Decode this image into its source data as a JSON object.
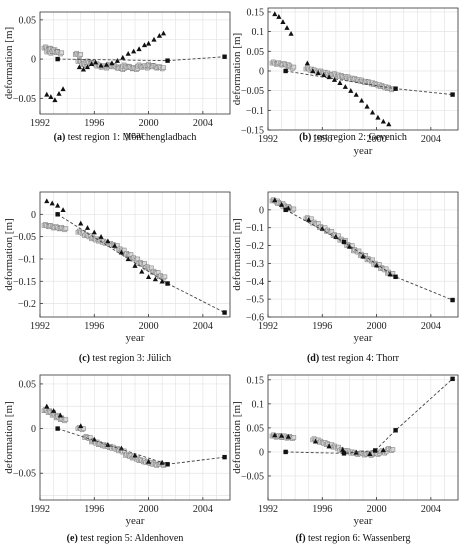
{
  "panels": [
    {
      "caption_letter": "(a)",
      "caption_text": " test region 1: Mönchengladbach",
      "ylabel": "deformation [m]",
      "xlabel": "year",
      "xlim": [
        1992,
        2006
      ],
      "ylim": [
        -0.07,
        0.06
      ],
      "yticks": [
        -0.05,
        0,
        0.05
      ],
      "ytick_labels": [
        "−0.05",
        "0",
        "0.05"
      ],
      "xticks": [
        1992,
        1996,
        2000,
        2004
      ],
      "xtick_labels": [
        "1992",
        "1996",
        "2000",
        "2004"
      ],
      "gridlines_y": [
        -0.05,
        -0.025,
        0,
        0.025,
        0.05
      ],
      "leveling": [
        [
          1993.3,
          0
        ],
        [
          2001.4,
          -0.002
        ],
        [
          2005.6,
          0.003
        ]
      ],
      "ps_gray": [
        [
          1992.5,
          0.014
        ],
        [
          1992.7,
          0.009
        ],
        [
          1992.9,
          0.012
        ],
        [
          1993.1,
          0.01
        ],
        [
          1993.4,
          0.008
        ],
        [
          1994.8,
          0.006
        ],
        [
          1995.0,
          -0.003
        ],
        [
          1995.3,
          -0.007
        ],
        [
          1995.6,
          -0.004
        ],
        [
          1996.0,
          -0.006
        ],
        [
          1996.4,
          -0.009
        ],
        [
          1996.8,
          -0.01
        ],
        [
          1997.2,
          -0.008
        ],
        [
          1997.6,
          -0.01
        ],
        [
          1998.0,
          -0.012
        ],
        [
          1998.3,
          -0.009
        ],
        [
          1998.7,
          -0.011
        ],
        [
          1999.0,
          -0.012
        ],
        [
          1999.4,
          -0.009
        ],
        [
          1999.8,
          -0.01
        ],
        [
          2000.1,
          -0.008
        ],
        [
          2000.5,
          -0.01
        ],
        [
          2000.9,
          -0.011
        ]
      ],
      "ps_black": [
        [
          1992.5,
          -0.045
        ],
        [
          1992.8,
          -0.048
        ],
        [
          1993.1,
          -0.052
        ],
        [
          1993.4,
          -0.044
        ],
        [
          1993.7,
          -0.038
        ],
        [
          1994.9,
          -0.01
        ],
        [
          1995.2,
          -0.013
        ],
        [
          1995.5,
          -0.01
        ],
        [
          1995.8,
          -0.006
        ],
        [
          1996.1,
          -0.004
        ],
        [
          1996.5,
          -0.008
        ],
        [
          1996.9,
          -0.007
        ],
        [
          1997.3,
          -0.005
        ],
        [
          1997.7,
          -0.002
        ],
        [
          1998.1,
          0.002
        ],
        [
          1998.5,
          0.007
        ],
        [
          1998.9,
          0.01
        ],
        [
          1999.3,
          0.013
        ],
        [
          1999.7,
          0.018
        ],
        [
          2000.0,
          0.02
        ],
        [
          2000.4,
          0.025
        ],
        [
          2000.8,
          0.03
        ],
        [
          2001.1,
          0.033
        ]
      ]
    },
    {
      "caption_letter": "(b)",
      "caption_text": " test region 2: Gevenich",
      "ylabel": "deformation [m]",
      "xlabel": "year",
      "xlim": [
        1992,
        2006
      ],
      "ylim": [
        -0.15,
        0.16
      ],
      "yticks": [
        -0.15,
        -0.1,
        -0.05,
        0,
        0.05,
        0.1,
        0.15
      ],
      "ytick_labels": [
        "−0.15",
        "−0.1",
        "−0.05",
        "0",
        "0.05",
        "0.1",
        "0.15"
      ],
      "xticks": [
        1992,
        1996,
        2000,
        2004
      ],
      "xtick_labels": [
        "1992",
        "1996",
        "2000",
        "2004"
      ],
      "gridlines_y": [
        -0.15,
        -0.1,
        -0.05,
        0,
        0.05,
        0.1,
        0.15
      ],
      "leveling": [
        [
          1993.3,
          0
        ],
        [
          2001.4,
          -0.045
        ],
        [
          2005.6,
          -0.06
        ]
      ],
      "ps_gray": [
        [
          1992.5,
          0.02
        ],
        [
          1992.9,
          0.018
        ],
        [
          1993.3,
          0.016
        ],
        [
          1993.7,
          0.01
        ],
        [
          1995.0,
          0.005
        ],
        [
          1995.5,
          0.0
        ],
        [
          1996.0,
          -0.003
        ],
        [
          1996.5,
          -0.008
        ],
        [
          1997.0,
          -0.01
        ],
        [
          1997.5,
          -0.014
        ],
        [
          1998.0,
          -0.018
        ],
        [
          1998.5,
          -0.022
        ],
        [
          1999.0,
          -0.026
        ],
        [
          1999.5,
          -0.03
        ],
        [
          2000.0,
          -0.035
        ],
        [
          2000.5,
          -0.04
        ],
        [
          2001.0,
          -0.045
        ]
      ],
      "ps_black": [
        [
          1992.5,
          0.145
        ],
        [
          1992.8,
          0.138
        ],
        [
          1993.1,
          0.125
        ],
        [
          1993.4,
          0.11
        ],
        [
          1993.7,
          0.095
        ],
        [
          1994.9,
          0.02
        ],
        [
          1995.3,
          0.0
        ],
        [
          1995.7,
          -0.005
        ],
        [
          1996.1,
          -0.01
        ],
        [
          1996.5,
          -0.015
        ],
        [
          1996.9,
          -0.022
        ],
        [
          1997.3,
          -0.03
        ],
        [
          1997.7,
          -0.04
        ],
        [
          1998.1,
          -0.05
        ],
        [
          1998.5,
          -0.06
        ],
        [
          1998.9,
          -0.075
        ],
        [
          1999.3,
          -0.09
        ],
        [
          1999.7,
          -0.105
        ],
        [
          2000.1,
          -0.118
        ],
        [
          2000.5,
          -0.128
        ],
        [
          2000.9,
          -0.135
        ]
      ]
    },
    {
      "caption_letter": "(c)",
      "caption_text": " test region 3: Jülich",
      "ylabel": "deformation [m]",
      "xlabel": "year",
      "xlim": [
        1992,
        2006
      ],
      "ylim": [
        -0.23,
        0.05
      ],
      "yticks": [
        -0.2,
        -0.15,
        -0.1,
        -0.05,
        0
      ],
      "ytick_labels": [
        "−0.2",
        "−0.15",
        "−0.1",
        "−0.05",
        "0"
      ],
      "xticks": [
        1992,
        1996,
        2000,
        2004
      ],
      "xtick_labels": [
        "1992",
        "1996",
        "2000",
        "2004"
      ],
      "gridlines_y": [
        -0.2,
        -0.15,
        -0.1,
        -0.05,
        0
      ],
      "leveling": [
        [
          1993.3,
          0
        ],
        [
          2001.4,
          -0.155
        ],
        [
          2005.6,
          -0.22
        ]
      ],
      "ps_gray": [
        [
          1992.5,
          -0.025
        ],
        [
          1992.9,
          -0.028
        ],
        [
          1993.3,
          -0.03
        ],
        [
          1993.7,
          -0.032
        ],
        [
          1995.0,
          -0.04
        ],
        [
          1995.5,
          -0.048
        ],
        [
          1996.0,
          -0.055
        ],
        [
          1996.5,
          -0.06
        ],
        [
          1997.0,
          -0.065
        ],
        [
          1997.5,
          -0.07
        ],
        [
          1998.0,
          -0.08
        ],
        [
          1998.5,
          -0.09
        ],
        [
          1999.0,
          -0.1
        ],
        [
          1999.5,
          -0.11
        ],
        [
          2000.0,
          -0.12
        ],
        [
          2000.5,
          -0.13
        ],
        [
          2001.0,
          -0.14
        ]
      ],
      "ps_black": [
        [
          1992.5,
          0.03
        ],
        [
          1992.9,
          0.025
        ],
        [
          1993.3,
          0.02
        ],
        [
          1993.7,
          0.01
        ],
        [
          1995.0,
          -0.02
        ],
        [
          1995.5,
          -0.03
        ],
        [
          1996.0,
          -0.04
        ],
        [
          1996.5,
          -0.05
        ],
        [
          1997.0,
          -0.06
        ],
        [
          1997.5,
          -0.07
        ],
        [
          1998.0,
          -0.085
        ],
        [
          1998.5,
          -0.1
        ],
        [
          1999.0,
          -0.115
        ],
        [
          1999.5,
          -0.128
        ],
        [
          2000.0,
          -0.14
        ],
        [
          2000.5,
          -0.145
        ],
        [
          2001.0,
          -0.15
        ]
      ]
    },
    {
      "caption_letter": "(d)",
      "caption_text": " test region 4: Thorr",
      "ylabel": "deformation [m]",
      "xlabel": "year",
      "xlim": [
        1992,
        2006
      ],
      "ylim": [
        -0.6,
        0.1
      ],
      "yticks": [
        -0.6,
        -0.5,
        -0.4,
        -0.3,
        -0.2,
        -0.1,
        0
      ],
      "ytick_labels": [
        "−0.6",
        "−0.5",
        "−0.4",
        "−0.3",
        "−0.2",
        "−0.1",
        "0"
      ],
      "xticks": [
        1992,
        1996,
        2000,
        2004
      ],
      "xtick_labels": [
        "1992",
        "1996",
        "2000",
        "2004"
      ],
      "gridlines_y": [
        -0.6,
        -0.5,
        -0.4,
        -0.3,
        -0.2,
        -0.1,
        0
      ],
      "leveling": [
        [
          1993.3,
          0
        ],
        [
          1997.6,
          -0.18
        ],
        [
          2001.4,
          -0.375
        ],
        [
          2005.6,
          -0.505
        ]
      ],
      "ps_gray": [
        [
          1992.5,
          0.05
        ],
        [
          1992.9,
          0.035
        ],
        [
          1993.3,
          0.02
        ],
        [
          1993.7,
          0.005
        ],
        [
          1995.0,
          -0.05
        ],
        [
          1995.5,
          -0.075
        ],
        [
          1996.0,
          -0.1
        ],
        [
          1996.5,
          -0.12
        ],
        [
          1997.0,
          -0.145
        ],
        [
          1997.5,
          -0.17
        ],
        [
          1998.0,
          -0.2
        ],
        [
          1998.5,
          -0.23
        ],
        [
          1999.0,
          -0.255
        ],
        [
          1999.5,
          -0.28
        ],
        [
          2000.0,
          -0.305
        ],
        [
          2000.5,
          -0.33
        ],
        [
          2001.0,
          -0.355
        ]
      ],
      "ps_black": [
        [
          1992.5,
          0.055
        ],
        [
          1993.0,
          0.03
        ],
        [
          1993.5,
          0.01
        ],
        [
          1995.0,
          -0.055
        ],
        [
          1996.0,
          -0.105
        ],
        [
          1997.0,
          -0.15
        ],
        [
          1998.0,
          -0.205
        ],
        [
          1999.0,
          -0.26
        ],
        [
          2000.0,
          -0.31
        ],
        [
          2001.0,
          -0.36
        ]
      ]
    },
    {
      "caption_letter": "(e)",
      "caption_text": " test region 5: Aldenhoven",
      "ylabel": "deformation [m]",
      "xlabel": "year",
      "xlim": [
        1992,
        2006
      ],
      "ylim": [
        -0.08,
        0.06
      ],
      "yticks": [
        -0.05,
        0,
        0.05
      ],
      "ytick_labels": [
        "−0.05",
        "0",
        "0.05"
      ],
      "xticks": [
        1992,
        1996,
        2000,
        2004
      ],
      "xtick_labels": [
        "1992",
        "1996",
        "2000",
        "2004"
      ],
      "gridlines_y": [
        -0.075,
        -0.05,
        -0.025,
        0,
        0.025,
        0.05
      ],
      "leveling": [
        [
          1993.3,
          0
        ],
        [
          2001.4,
          -0.04
        ],
        [
          2005.6,
          -0.032
        ]
      ],
      "ps_gray": [
        [
          1992.5,
          0.02
        ],
        [
          1992.8,
          0.018
        ],
        [
          1993.1,
          0.015
        ],
        [
          1993.4,
          0.012
        ],
        [
          1993.7,
          0.01
        ],
        [
          1995.0,
          0.0
        ],
        [
          1995.5,
          -0.01
        ],
        [
          1996.0,
          -0.015
        ],
        [
          1996.5,
          -0.018
        ],
        [
          1997.0,
          -0.02
        ],
        [
          1997.5,
          -0.022
        ],
        [
          1998.0,
          -0.025
        ],
        [
          1998.5,
          -0.03
        ],
        [
          1999.0,
          -0.033
        ],
        [
          1999.5,
          -0.036
        ],
        [
          2000.0,
          -0.038
        ],
        [
          2000.5,
          -0.04
        ],
        [
          2001.0,
          -0.04
        ]
      ],
      "ps_black": [
        [
          1992.5,
          0.025
        ],
        [
          1993.0,
          0.02
        ],
        [
          1993.5,
          0.015
        ],
        [
          1995.0,
          0.003
        ],
        [
          1996.0,
          -0.012
        ],
        [
          1997.0,
          -0.018
        ],
        [
          1998.0,
          -0.022
        ],
        [
          1999.0,
          -0.03
        ],
        [
          2000.0,
          -0.037
        ],
        [
          2001.0,
          -0.038
        ]
      ]
    },
    {
      "caption_letter": "(f)",
      "caption_text": " test region 6: Wassenberg",
      "ylabel": "deformation [m]",
      "xlabel": "year",
      "xlim": [
        1992,
        2006
      ],
      "ylim": [
        -0.1,
        0.16
      ],
      "yticks": [
        -0.05,
        0,
        0.05,
        0.1,
        0.15
      ],
      "ytick_labels": [
        "−0.05",
        "0",
        "0.05",
        "0.1",
        "0.15"
      ],
      "xticks": [
        1992,
        1996,
        2000,
        2004
      ],
      "xtick_labels": [
        "1992",
        "1996",
        "2000",
        "2004"
      ],
      "gridlines_y": [
        -0.1,
        -0.05,
        0,
        0.05,
        0.1,
        0.15
      ],
      "leveling": [
        [
          1993.3,
          0
        ],
        [
          1997.6,
          -0.003
        ],
        [
          1999.9,
          0.003
        ],
        [
          2001.4,
          0.045
        ],
        [
          2005.6,
          0.152
        ]
      ],
      "ps_gray": [
        [
          1992.5,
          0.033
        ],
        [
          1992.9,
          0.032
        ],
        [
          1993.3,
          0.031
        ],
        [
          1993.7,
          0.03
        ],
        [
          1995.5,
          0.025
        ],
        [
          1996.0,
          0.02
        ],
        [
          1996.5,
          0.015
        ],
        [
          1997.0,
          0.01
        ],
        [
          1997.5,
          0.003
        ],
        [
          1998.0,
          0.0
        ],
        [
          1998.5,
          -0.003
        ],
        [
          1999.0,
          -0.004
        ],
        [
          1999.5,
          -0.005
        ],
        [
          2000.0,
          -0.003
        ],
        [
          2000.5,
          0.0
        ],
        [
          2001.0,
          0.005
        ]
      ],
      "ps_black": [
        [
          1992.5,
          0.035
        ],
        [
          1993.0,
          0.034
        ],
        [
          1993.5,
          0.032
        ],
        [
          1995.5,
          0.022
        ],
        [
          1996.5,
          0.012
        ],
        [
          1997.5,
          0.005
        ],
        [
          1998.5,
          -0.001
        ],
        [
          1999.5,
          -0.004
        ],
        [
          2000.5,
          0.004
        ]
      ]
    }
  ]
}
